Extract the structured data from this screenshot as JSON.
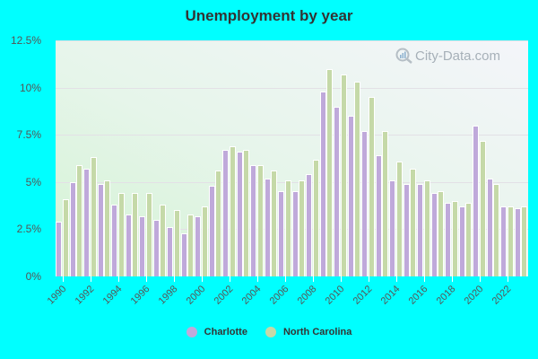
{
  "title": "Unemployment by year",
  "watermark": "City-Data.com",
  "colors": {
    "charlotte": "#bfa9da",
    "north_carolina": "#c5d9a8",
    "background": "#00ffff"
  },
  "legend": [
    {
      "label": "Charlotte",
      "color": "#bfa9da"
    },
    {
      "label": "North Carolina",
      "color": "#c5d9a8"
    }
  ],
  "y_axis": {
    "ticks": [
      "0%",
      "2.5%",
      "5%",
      "7.5%",
      "10%",
      "12.5%"
    ]
  },
  "x_axis": {
    "ticks": [
      "1990",
      "1992",
      "1994",
      "1996",
      "1998",
      "2000",
      "2002",
      "2004",
      "2006",
      "2008",
      "2010",
      "2012",
      "2014",
      "2016",
      "2018",
      "2020",
      "2022"
    ]
  },
  "chart_data": {
    "type": "bar",
    "title": "Unemployment by year",
    "xlabel": "",
    "ylabel": "",
    "ylim": [
      0,
      12.5
    ],
    "y_tick_labels": [
      "0%",
      "2.5%",
      "5%",
      "7.5%",
      "10%",
      "12.5%"
    ],
    "grid": true,
    "legend_position": "bottom",
    "categories": [
      1990,
      1991,
      1992,
      1993,
      1994,
      1995,
      1996,
      1997,
      1998,
      1999,
      2000,
      2001,
      2002,
      2003,
      2004,
      2005,
      2006,
      2007,
      2008,
      2009,
      2010,
      2011,
      2012,
      2013,
      2014,
      2015,
      2016,
      2017,
      2018,
      2019,
      2020,
      2021,
      2022,
      2023
    ],
    "series": [
      {
        "name": "Charlotte",
        "color": "#bfa9da",
        "values": [
          2.9,
          5.0,
          5.7,
          4.9,
          3.8,
          3.3,
          3.2,
          3.0,
          2.6,
          2.3,
          3.2,
          4.8,
          6.7,
          6.6,
          5.9,
          5.2,
          4.5,
          4.5,
          5.4,
          9.8,
          9.0,
          8.5,
          7.7,
          6.4,
          5.1,
          4.9,
          4.9,
          4.4,
          3.9,
          3.7,
          8.0,
          5.2,
          3.7,
          3.6
        ]
      },
      {
        "name": "North Carolina",
        "color": "#c5d9a8",
        "values": [
          4.1,
          5.9,
          6.3,
          5.1,
          4.4,
          4.4,
          4.4,
          3.8,
          3.5,
          3.3,
          3.7,
          5.6,
          6.9,
          6.7,
          5.9,
          5.6,
          5.1,
          5.1,
          6.2,
          11.0,
          10.7,
          10.3,
          9.5,
          7.7,
          6.1,
          5.7,
          5.1,
          4.5,
          4.0,
          3.9,
          7.2,
          4.9,
          3.7,
          3.7
        ]
      }
    ]
  }
}
